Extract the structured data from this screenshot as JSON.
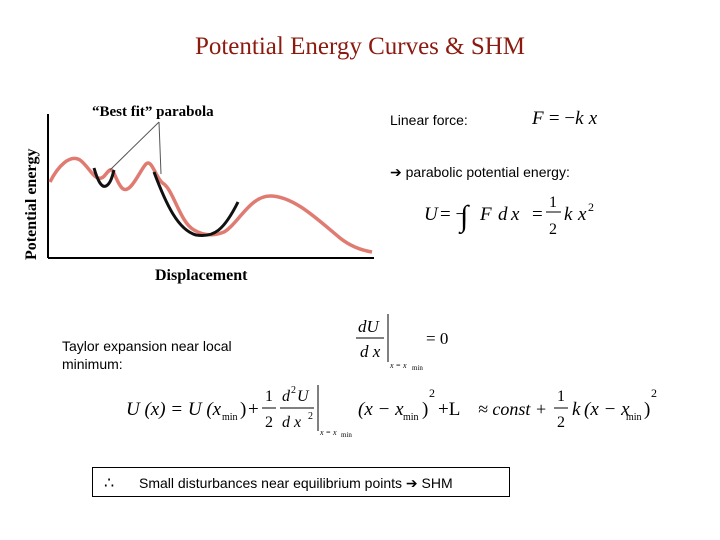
{
  "title": "Potential Energy Curves & SHM",
  "graph": {
    "ylabel": "Potential energy",
    "xlabel": "Displacement",
    "annotation": "“Best fit” parabola"
  },
  "linear_force": {
    "label": "Linear force:",
    "eq_lhs": "F",
    "eq_sign": "= −",
    "eq_k": "k",
    "eq_x": "x"
  },
  "parabolic": {
    "arrow": "➔",
    "label": "parabolic potential energy:",
    "eq": {
      "U": "U",
      "eq_int": "= −",
      "int_sign": "∫",
      "F": "F",
      "d": "d",
      "x": "x",
      "eq2": "=",
      "num": "1",
      "den": "2",
      "k": "k",
      "x2": "x",
      "pow": "2"
    }
  },
  "taylor": {
    "label": "Taylor expansion near local minimum:",
    "deriv": {
      "num": "dU",
      "den": "d x",
      "sub": "x = x",
      "sub2": "min",
      "rhs": "= 0"
    },
    "expansion": {
      "lhs": "U (x) = U (x",
      "min": "min",
      "paren": ")",
      "plus": "+",
      "frac_num": "1",
      "frac_den": "2",
      "d2_num": "d",
      "d2_num2": "U",
      "d2_den": "d x",
      "sub": "x = x",
      "sub_min": "min",
      "sq_open": "(x − x",
      "sq_min": "min",
      "sq_close": ")",
      "two": "2",
      "dots": "+L",
      "approx": "≈ const +",
      "k": "k",
      "tail": "(x − x",
      "tail_min": "min"
    }
  },
  "conclusion": {
    "therefore": "∴",
    "text": "Small disturbances near equilibrium points ➔ SHM"
  }
}
